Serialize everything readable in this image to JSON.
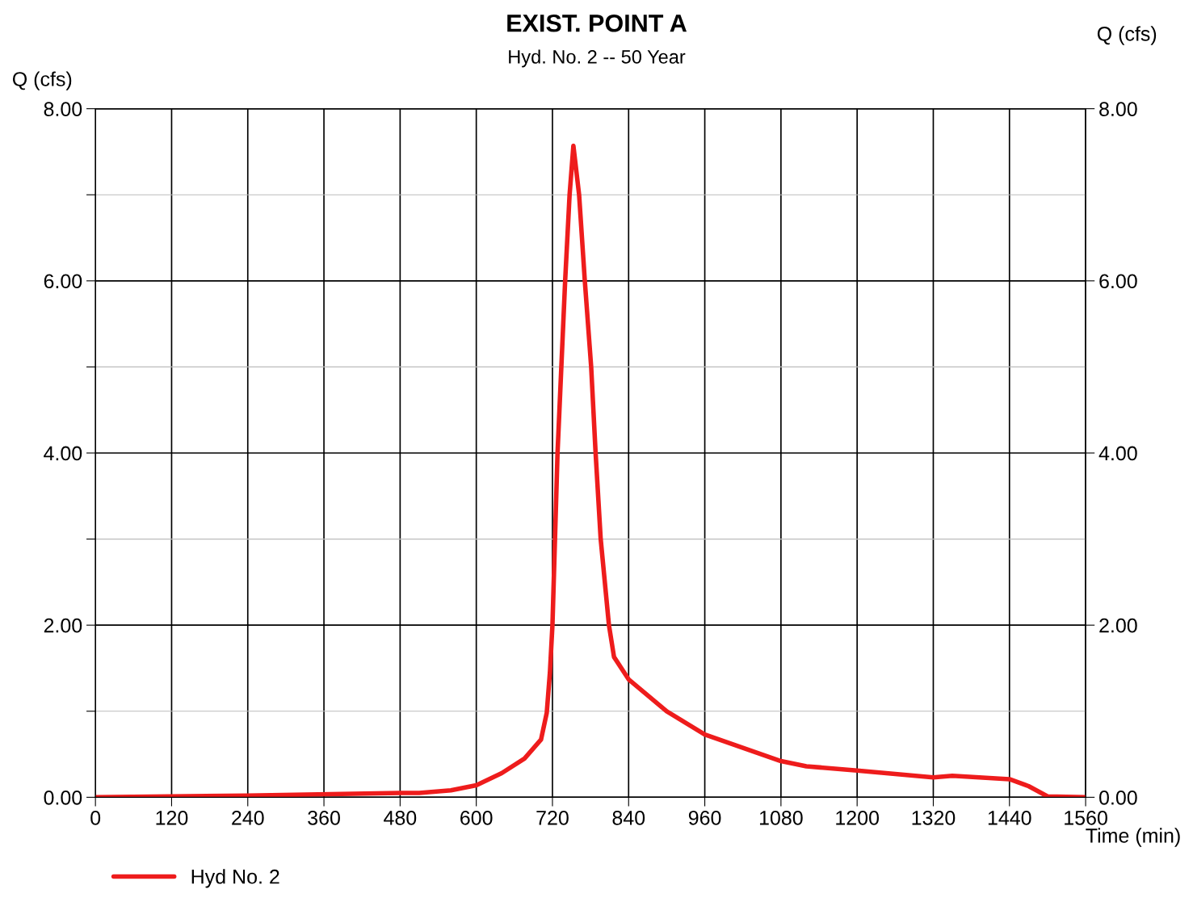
{
  "chart_data": {
    "type": "line",
    "title": "EXIST. POINT A",
    "subtitle": "Hyd. No. 2 -- 50 Year",
    "xlabel": "Time (min)",
    "ylabel": "Q (cfs)",
    "y2label": "Q (cfs)",
    "series": [
      {
        "name": "Hyd No. 2",
        "color": "#ee1c1c",
        "x": [
          0,
          240,
          480,
          510,
          560,
          600,
          640,
          676,
          702,
          711,
          716,
          720,
          728,
          740,
          747,
          753,
          762,
          771,
          781,
          788,
          796,
          809,
          817,
          840,
          900,
          960,
          1080,
          1120,
          1200,
          1320,
          1350,
          1440,
          1470,
          1500,
          1560
        ],
        "values": [
          0,
          0.02,
          0.05,
          0.05,
          0.08,
          0.14,
          0.28,
          0.45,
          0.67,
          0.98,
          1.45,
          2.0,
          4.0,
          6.0,
          7.0,
          7.57,
          7.0,
          6.0,
          5.0,
          4.0,
          3.0,
          2.0,
          1.63,
          1.37,
          1.0,
          0.73,
          0.42,
          0.36,
          0.31,
          0.23,
          0.25,
          0.21,
          0.13,
          0.01,
          0.0
        ]
      }
    ],
    "xlim": [
      0,
      1560
    ],
    "xticks": [
      0,
      120,
      240,
      360,
      480,
      600,
      720,
      840,
      960,
      1080,
      1200,
      1320,
      1440,
      1560
    ],
    "ylim": [
      0,
      8
    ],
    "yticks": [
      {
        "value": 0,
        "label": "0.00"
      },
      {
        "value": 1,
        "label": null
      },
      {
        "value": 2,
        "label": "2.00"
      },
      {
        "value": 3,
        "label": null
      },
      {
        "value": 4,
        "label": "4.00"
      },
      {
        "value": 5,
        "label": null
      },
      {
        "value": 6,
        "label": "6.00"
      },
      {
        "value": 7,
        "label": null
      },
      {
        "value": 8,
        "label": "8.00"
      }
    ],
    "y2lim": [
      0,
      8
    ],
    "y2ticks": [
      {
        "value": 0,
        "label": "0.00"
      },
      {
        "value": 2,
        "label": "2.00"
      },
      {
        "value": 4,
        "label": "4.00"
      },
      {
        "value": 6,
        "label": "6.00"
      },
      {
        "value": 8,
        "label": "8.00"
      }
    ],
    "grid": true,
    "legend": "bottom left",
    "marker": "none",
    "line_style": "solid"
  }
}
